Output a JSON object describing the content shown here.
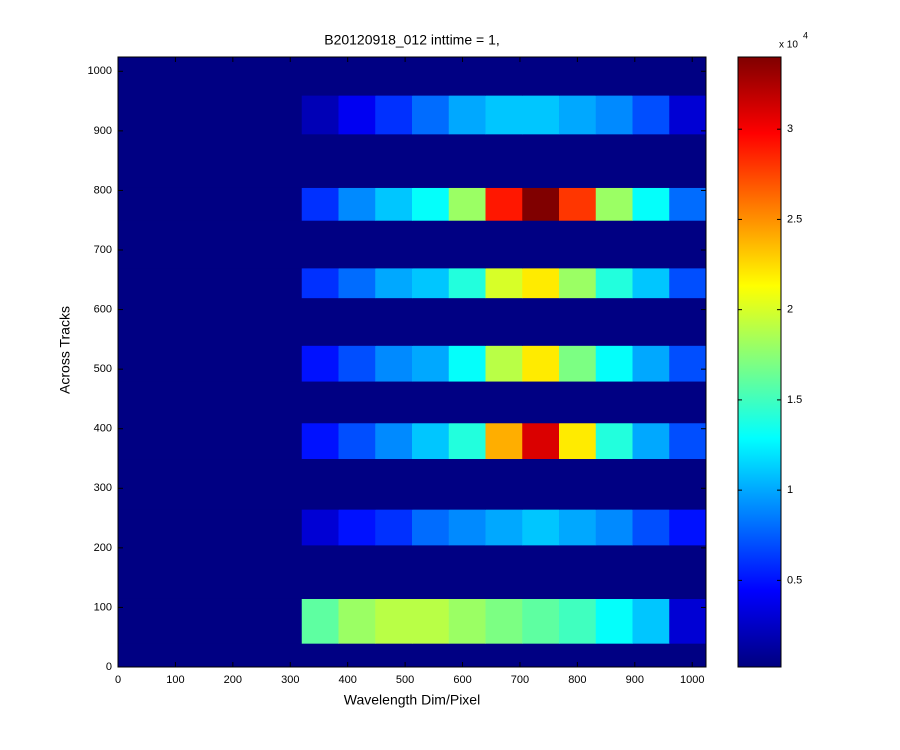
{
  "chart_data": {
    "type": "heatmap",
    "title": "B20120918_012 inttime = 1,",
    "xlabel": "Wavelength Dim/Pixel",
    "ylabel": "Across Tracks",
    "xlim": [
      0,
      1024
    ],
    "ylim": [
      0,
      1024
    ],
    "xticks": [
      0,
      100,
      200,
      300,
      400,
      500,
      600,
      700,
      800,
      900,
      1000
    ],
    "yticks": [
      0,
      100,
      200,
      300,
      400,
      500,
      600,
      700,
      800,
      900,
      1000
    ],
    "x_edges": [
      0,
      64,
      128,
      192,
      256,
      320,
      384,
      448,
      512,
      576,
      640,
      704,
      768,
      832,
      896,
      960,
      1024
    ],
    "y_edges": [
      0,
      40,
      115,
      205,
      265,
      350,
      410,
      480,
      540,
      620,
      670,
      750,
      805,
      895,
      960,
      1024
    ],
    "colormap": "jet",
    "colorbar_lim": [
      0.02,
      3.4
    ],
    "colorbar_ticks": [
      0.5,
      1,
      1.5,
      2,
      2.5,
      3
    ],
    "colorbar_multiplier": "x 10",
    "colorbar_exponent": 4,
    "values": [
      [
        0.03,
        0.03,
        0.03,
        0.03,
        0.03,
        0.03,
        0.03,
        0.03,
        0.03,
        0.03,
        0.03,
        0.03,
        0.03,
        0.03,
        0.03,
        0.03
      ],
      [
        0.03,
        0.03,
        0.03,
        0.03,
        0.03,
        1.6,
        1.8,
        1.9,
        1.9,
        1.8,
        1.7,
        1.6,
        1.5,
        1.3,
        1.1,
        0.3
      ],
      [
        0.03,
        0.03,
        0.03,
        0.03,
        0.03,
        0.03,
        0.03,
        0.03,
        0.03,
        0.03,
        0.03,
        0.03,
        0.03,
        0.03,
        0.03,
        0.03
      ],
      [
        0.03,
        0.03,
        0.03,
        0.03,
        0.03,
        0.3,
        0.5,
        0.6,
        0.8,
        0.9,
        1.0,
        1.1,
        1.0,
        0.9,
        0.7,
        0.5
      ],
      [
        0.03,
        0.03,
        0.03,
        0.03,
        0.03,
        0.03,
        0.03,
        0.03,
        0.03,
        0.03,
        0.03,
        0.03,
        0.03,
        0.03,
        0.03,
        0.03
      ],
      [
        0.03,
        0.03,
        0.03,
        0.03,
        0.03,
        0.5,
        0.7,
        0.9,
        1.1,
        1.4,
        2.4,
        3.1,
        2.2,
        1.4,
        1.0,
        0.7
      ],
      [
        0.03,
        0.03,
        0.03,
        0.03,
        0.03,
        0.03,
        0.03,
        0.03,
        0.03,
        0.03,
        0.03,
        0.03,
        0.03,
        0.03,
        0.03,
        0.03
      ],
      [
        0.03,
        0.03,
        0.03,
        0.03,
        0.03,
        0.5,
        0.7,
        0.9,
        1.0,
        1.3,
        1.9,
        2.2,
        1.7,
        1.3,
        1.0,
        0.7
      ],
      [
        0.03,
        0.03,
        0.03,
        0.03,
        0.03,
        0.03,
        0.03,
        0.03,
        0.03,
        0.03,
        0.03,
        0.03,
        0.03,
        0.03,
        0.03,
        0.03
      ],
      [
        0.03,
        0.03,
        0.03,
        0.03,
        0.03,
        0.6,
        0.8,
        1.0,
        1.1,
        1.4,
        2.0,
        2.2,
        1.8,
        1.4,
        1.1,
        0.7
      ],
      [
        0.03,
        0.03,
        0.03,
        0.03,
        0.03,
        0.03,
        0.03,
        0.03,
        0.03,
        0.03,
        0.03,
        0.03,
        0.03,
        0.03,
        0.03,
        0.03
      ],
      [
        0.03,
        0.03,
        0.03,
        0.03,
        0.03,
        0.6,
        0.9,
        1.1,
        1.3,
        1.8,
        2.9,
        3.4,
        2.8,
        1.8,
        1.3,
        0.8
      ],
      [
        0.03,
        0.03,
        0.03,
        0.03,
        0.03,
        0.03,
        0.03,
        0.03,
        0.03,
        0.03,
        0.03,
        0.03,
        0.03,
        0.03,
        0.03,
        0.03
      ],
      [
        0.03,
        0.03,
        0.03,
        0.03,
        0.03,
        0.2,
        0.4,
        0.6,
        0.8,
        1.0,
        1.1,
        1.1,
        1.0,
        0.9,
        0.7,
        0.3
      ],
      [
        0.03,
        0.03,
        0.03,
        0.03,
        0.03,
        0.03,
        0.03,
        0.03,
        0.03,
        0.03,
        0.03,
        0.03,
        0.03,
        0.03,
        0.03,
        0.03
      ]
    ]
  }
}
